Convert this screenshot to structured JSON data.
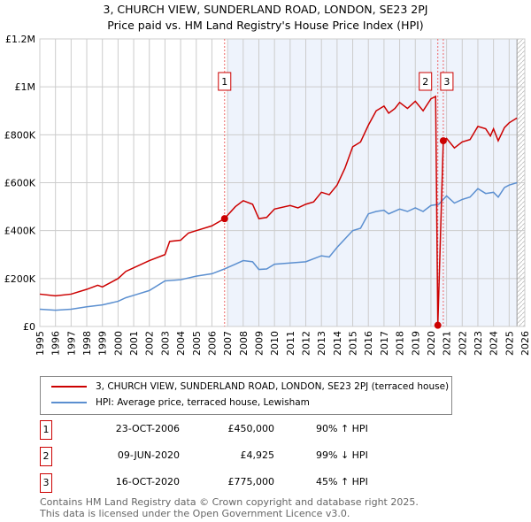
{
  "chart_data": {
    "type": "line",
    "title": "3, CHURCH VIEW, SUNDERLAND ROAD, LONDON, SE23 2PJ",
    "subtitle": "Price paid vs. HM Land Registry's House Price Index (HPI)",
    "xlim": [
      1995,
      2026
    ],
    "ylim": [
      0,
      1200000
    ],
    "x_ticks": [
      "1995",
      "1996",
      "1997",
      "1998",
      "1999",
      "2000",
      "2001",
      "2002",
      "2003",
      "2004",
      "2005",
      "2006",
      "2007",
      "2008",
      "2009",
      "2010",
      "2011",
      "2012",
      "2013",
      "2014",
      "2015",
      "2016",
      "2017",
      "2018",
      "2019",
      "2020",
      "2021",
      "2022",
      "2023",
      "2024",
      "2025",
      "2026"
    ],
    "y_ticks": [
      {
        "v": 0,
        "label": "£0"
      },
      {
        "v": 200000,
        "label": "£200K"
      },
      {
        "v": 400000,
        "label": "£400K"
      },
      {
        "v": 600000,
        "label": "£600K"
      },
      {
        "v": 800000,
        "label": "£800K"
      },
      {
        "v": 1000000,
        "label": "£1M"
      },
      {
        "v": 1200000,
        "label": "£1.2M"
      }
    ],
    "colors": {
      "property": "#cc0000",
      "hpi": "#5b8fd0"
    },
    "series": [
      {
        "name": "3, CHURCH VIEW, SUNDERLAND ROAD, LONDON, SE23 2PJ (terraced house)",
        "x": [
          1995,
          1996,
          1997,
          1998,
          1998.7,
          1999,
          2000,
          2000.5,
          2001,
          2002,
          2003,
          2003.3,
          2004,
          2004.5,
          2005,
          2006,
          2006.8,
          2007.5,
          2008,
          2008.6,
          2009,
          2009.5,
          2010,
          2011,
          2011.5,
          2012,
          2012.5,
          2013,
          2013.5,
          2014,
          2014.5,
          2015,
          2015.5,
          2016,
          2016.5,
          2017,
          2017.3,
          2017.7,
          2018,
          2018.5,
          2019,
          2019.5,
          2020,
          2020.3,
          2020.44,
          2020.79,
          2021,
          2021.5,
          2022,
          2022.5,
          2023,
          2023.5,
          2023.8,
          2024,
          2024.3,
          2024.7,
          2025,
          2025.5
        ],
        "y": [
          135000,
          128000,
          135000,
          155000,
          172000,
          165000,
          200000,
          230000,
          245000,
          275000,
          300000,
          355000,
          360000,
          390000,
          400000,
          420000,
          450000,
          500000,
          525000,
          510000,
          450000,
          455000,
          490000,
          505000,
          495000,
          510000,
          520000,
          560000,
          550000,
          590000,
          660000,
          750000,
          770000,
          840000,
          900000,
          920000,
          890000,
          910000,
          935000,
          910000,
          940000,
          900000,
          950000,
          960000,
          4925,
          775000,
          785000,
          745000,
          770000,
          780000,
          835000,
          825000,
          795000,
          825000,
          775000,
          830000,
          850000,
          870000
        ]
      },
      {
        "name": "HPI: Average price, terraced house, Lewisham",
        "x": [
          1995,
          1996,
          1997,
          1998,
          1999,
          2000,
          2000.5,
          2001,
          2002,
          2003,
          2004,
          2005,
          2006,
          2006.8,
          2007.5,
          2008,
          2008.6,
          2009,
          2009.5,
          2010,
          2011,
          2012,
          2013,
          2013.5,
          2014,
          2015,
          2015.5,
          2016,
          2016.5,
          2017,
          2017.3,
          2018,
          2018.5,
          2019,
          2019.5,
          2020,
          2020.5,
          2021,
          2021.5,
          2022,
          2022.5,
          2023,
          2023.5,
          2024,
          2024.3,
          2024.7,
          2025,
          2025.5
        ],
        "y": [
          72000,
          68000,
          72000,
          82000,
          90000,
          105000,
          120000,
          130000,
          150000,
          190000,
          195000,
          210000,
          220000,
          240000,
          260000,
          275000,
          270000,
          238000,
          240000,
          260000,
          265000,
          270000,
          295000,
          290000,
          330000,
          400000,
          410000,
          470000,
          480000,
          485000,
          470000,
          490000,
          480000,
          495000,
          480000,
          505000,
          510000,
          545000,
          515000,
          530000,
          540000,
          575000,
          555000,
          560000,
          540000,
          580000,
          590000,
          600000
        ]
      }
    ],
    "sales": [
      {
        "n": "1",
        "x": 2006.81,
        "y": 450000,
        "date": "23-OCT-2006",
        "price": "£450,000",
        "hpi": "90% ↑ HPI"
      },
      {
        "n": "2",
        "x": 2020.44,
        "y": 4925,
        "date": "09-JUN-2020",
        "price": "£4,925",
        "hpi": "99% ↓ HPI"
      },
      {
        "n": "3",
        "x": 2020.79,
        "y": 775000,
        "date": "16-OCT-2020",
        "price": "£775,000",
        "hpi": "45% ↑ HPI"
      }
    ],
    "shaded_from": 2007,
    "hatched_from": 2025.5
  },
  "legend": {
    "property": "3, CHURCH VIEW, SUNDERLAND ROAD, LONDON, SE23 2PJ (terraced house)",
    "hpi": "HPI: Average price, terraced house, Lewisham"
  },
  "footer": {
    "line1": "Contains HM Land Registry data © Crown copyright and database right 2025.",
    "line2": "This data is licensed under the Open Government Licence v3.0."
  }
}
